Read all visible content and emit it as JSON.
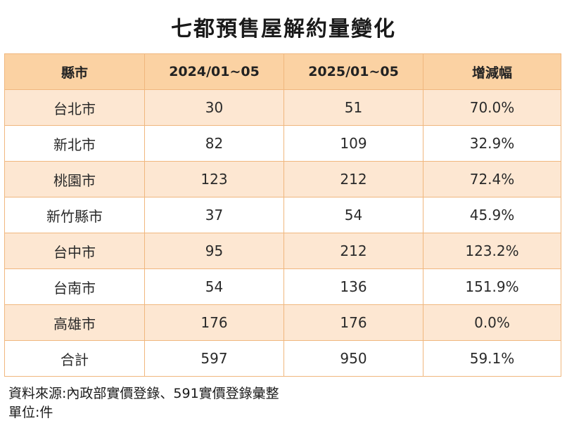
{
  "title": "七都預售屋解約量變化",
  "table": {
    "headers": [
      "縣市",
      "2024/01~05",
      "2025/01~05",
      "增減幅"
    ],
    "rows": [
      [
        "台北市",
        "30",
        "51",
        "70.0%"
      ],
      [
        "新北市",
        "82",
        "109",
        "32.9%"
      ],
      [
        "桃園市",
        "123",
        "212",
        "72.4%"
      ],
      [
        "新竹縣市",
        "37",
        "54",
        "45.9%"
      ],
      [
        "台中市",
        "95",
        "212",
        "123.2%"
      ],
      [
        "台南市",
        "54",
        "136",
        "151.9%"
      ],
      [
        "高雄市",
        "176",
        "176",
        "0.0%"
      ],
      [
        "合計",
        "597",
        "950",
        "59.1%"
      ]
    ]
  },
  "notes": {
    "source": "資料來源:內政部實價登錄、591實價登錄彙整",
    "unit": "單位:件"
  },
  "colors": {
    "header_bg": "#fbd2a3",
    "row_alt_bg": "#fde7d2",
    "border": "#f0b77e"
  }
}
